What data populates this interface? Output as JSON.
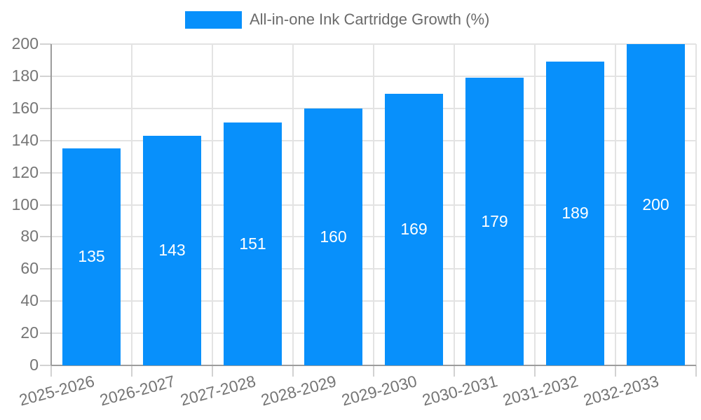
{
  "chart_data": {
    "type": "bar",
    "title": "",
    "legend": {
      "label": "All-in-one Ink Cartridge Growth (%)",
      "position": "top"
    },
    "categories": [
      "2025-2026",
      "2026-2027",
      "2027-2028",
      "2028-2029",
      "2029-2030",
      "2030-2031",
      "2031-2032",
      "2032-2033"
    ],
    "values": [
      135,
      143,
      151,
      160,
      169,
      179,
      189,
      200
    ],
    "yticks": [
      0,
      20,
      40,
      60,
      80,
      100,
      120,
      140,
      160,
      180,
      200
    ],
    "ylim": [
      0,
      200
    ],
    "xlabel": "",
    "ylabel": "",
    "grid": true,
    "x_label_rotation_deg": -15,
    "colors": {
      "bar": "#0890fb",
      "bar_value_text": "#ffffff",
      "grid_line": "#e3e3e3",
      "tick_line": "#d2d2d2",
      "axis_line": "#9c9c9c",
      "axis_text": "#757575",
      "legend_text": "#6b6b6b"
    }
  }
}
